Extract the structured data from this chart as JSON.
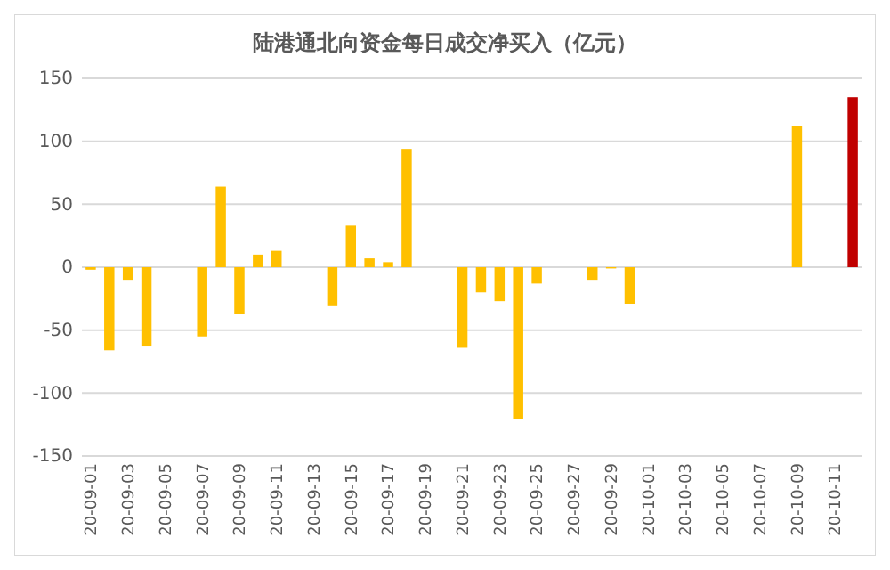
{
  "chart_data": {
    "type": "bar",
    "title": "陆港通北向资金每日成交净买入（亿元）",
    "categories": [
      "20-09-01",
      null,
      "20-09-03",
      null,
      "20-09-05",
      null,
      "20-09-07",
      null,
      "20-09-09",
      null,
      "20-09-11",
      null,
      "20-09-13",
      null,
      "20-09-15",
      null,
      "20-09-17",
      null,
      "20-09-19",
      null,
      "20-09-21",
      null,
      "20-09-23",
      null,
      "20-09-25",
      null,
      "20-09-27",
      null,
      "20-09-29",
      null,
      "20-10-01",
      null,
      "20-10-03",
      null,
      "20-10-05",
      null,
      "20-10-07",
      null,
      "20-10-09",
      null,
      "20-10-11",
      null
    ],
    "values": [
      -2,
      -66,
      -10,
      -63,
      null,
      null,
      -55,
      64,
      -37,
      10,
      13,
      null,
      null,
      -31,
      33,
      7,
      4,
      94,
      null,
      null,
      -64,
      -20,
      -27,
      -121,
      -13,
      null,
      null,
      -10,
      -1,
      -29,
      null,
      null,
      null,
      null,
      null,
      null,
      null,
      null,
      112,
      null,
      null,
      135
    ],
    "colors": [
      "#ffc000",
      "#ffc000",
      "#ffc000",
      "#ffc000",
      null,
      null,
      "#ffc000",
      "#ffc000",
      "#ffc000",
      "#ffc000",
      "#ffc000",
      null,
      null,
      "#ffc000",
      "#ffc000",
      "#ffc000",
      "#ffc000",
      "#ffc000",
      null,
      null,
      "#ffc000",
      "#ffc000",
      "#ffc000",
      "#ffc000",
      "#ffc000",
      null,
      null,
      "#ffc000",
      "#ffc000",
      "#ffc000",
      null,
      null,
      null,
      null,
      null,
      null,
      null,
      null,
      "#ffc000",
      null,
      null,
      "#c00000"
    ],
    "ylim": [
      -150,
      150
    ],
    "yticks": [
      -150,
      -100,
      -50,
      0,
      50,
      100,
      150
    ],
    "grid": "y"
  }
}
